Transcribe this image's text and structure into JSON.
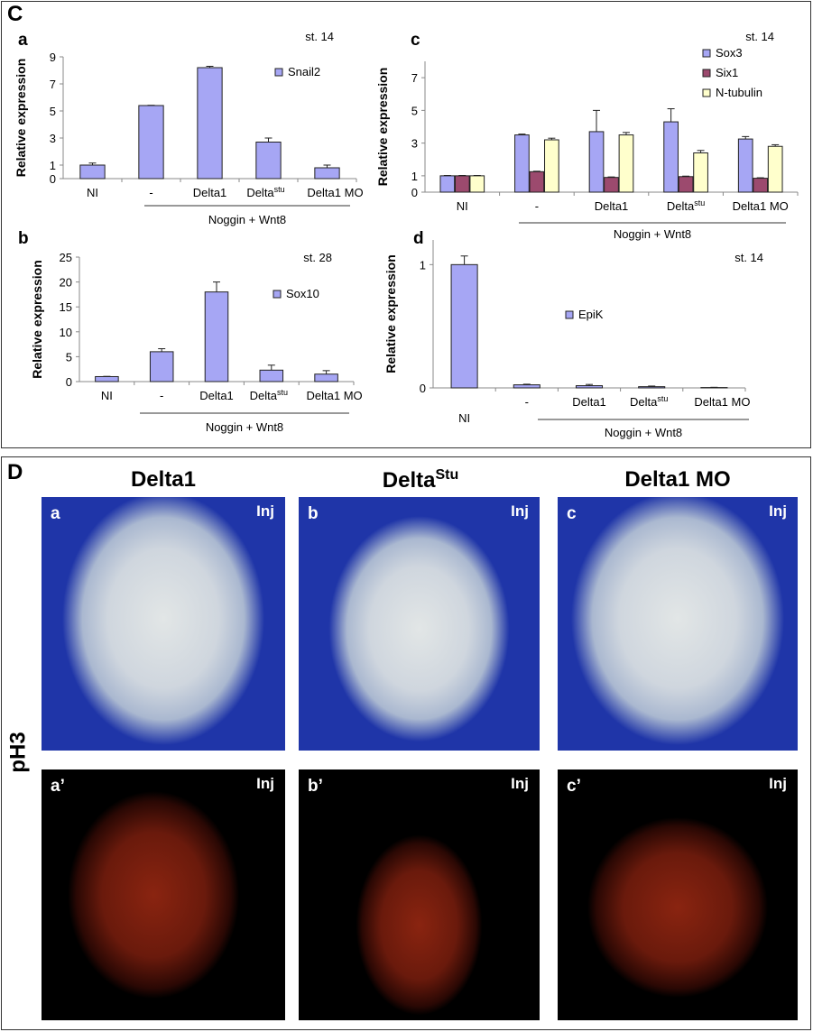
{
  "panels": {
    "C": "C",
    "D": "D"
  },
  "chart_data": [
    {
      "id": "a",
      "type": "bar",
      "panel_letter": "a",
      "stage": "st. 14",
      "ylabel": "Relative expression",
      "yticks": [
        0,
        1,
        3,
        5,
        7,
        9
      ],
      "ylim": [
        0,
        9
      ],
      "categories": [
        "NI",
        "-",
        "Delta1",
        "Delta",
        "Delta1 MO"
      ],
      "category_sup": [
        "",
        "",
        "",
        "stu",
        ""
      ],
      "group_label": "Noggin + Wnt8",
      "series": [
        {
          "name": "Snail2",
          "color": "#a6a6f4",
          "values": [
            1.0,
            5.4,
            8.2,
            2.7,
            0.8
          ],
          "errors": [
            0.15,
            0.02,
            0.1,
            0.3,
            0.2
          ]
        }
      ]
    },
    {
      "id": "b",
      "type": "bar",
      "panel_letter": "b",
      "stage": "st. 28",
      "ylabel": "Relative expression",
      "yticks": [
        0,
        5,
        10,
        15,
        20,
        25
      ],
      "ylim": [
        0,
        25
      ],
      "categories": [
        "NI",
        "-",
        "Delta1",
        "Delta",
        "Delta1 MO"
      ],
      "category_sup": [
        "",
        "",
        "",
        "stu",
        ""
      ],
      "group_label": "Noggin + Wnt8",
      "series": [
        {
          "name": "Sox10",
          "color": "#a6a6f4",
          "values": [
            1.0,
            6.0,
            18.0,
            2.3,
            1.5
          ],
          "errors": [
            0.05,
            0.6,
            2.0,
            1.0,
            0.7
          ]
        }
      ]
    },
    {
      "id": "c",
      "type": "bar",
      "panel_letter": "c",
      "stage": "st. 14",
      "ylabel": "Relative expression",
      "yticks": [
        0,
        1,
        3,
        5,
        7
      ],
      "ylim": [
        0,
        8
      ],
      "categories": [
        "NI",
        "-",
        "Delta1",
        "Delta",
        "Delta1 MO"
      ],
      "category_sup": [
        "",
        "",
        "",
        "stu",
        ""
      ],
      "group_label": "Noggin + Wnt8",
      "series": [
        {
          "name": "Sox3",
          "color": "#a6a6f4",
          "values": [
            1.0,
            3.5,
            3.7,
            4.3,
            3.25
          ],
          "errors": [
            0.02,
            0.05,
            1.3,
            0.8,
            0.15
          ]
        },
        {
          "name": "Six1",
          "color": "#9c4a6e",
          "values": [
            1.0,
            1.25,
            0.9,
            0.95,
            0.85
          ],
          "errors": [
            0.02,
            0.03,
            0.03,
            0.03,
            0.03
          ]
        },
        {
          "name": "N-tubulin",
          "color": "#ffffcc",
          "values": [
            1.0,
            3.2,
            3.5,
            2.4,
            2.8
          ],
          "errors": [
            0.02,
            0.1,
            0.15,
            0.15,
            0.1
          ]
        }
      ]
    },
    {
      "id": "d",
      "type": "bar",
      "panel_letter": "d",
      "stage": "st. 14",
      "ylabel": "Relative expression",
      "yticks": [
        0,
        1
      ],
      "ylim": [
        0,
        1.2
      ],
      "categories": [
        "NI",
        "-",
        "Delta1",
        "Delta",
        "Delta1 MO"
      ],
      "category_sup": [
        "",
        "",
        "",
        "stu",
        ""
      ],
      "group_label": "Noggin + Wnt8",
      "series": [
        {
          "name": "EpiK",
          "color": "#a6a6f4",
          "values": [
            1.0,
            0.025,
            0.018,
            0.01,
            0.003
          ],
          "errors": [
            0.07,
            0.005,
            0.01,
            0.005,
            0.002
          ]
        }
      ]
    }
  ],
  "images": {
    "columns": [
      "Delta1",
      "Delta",
      "Delta1 MO"
    ],
    "column_sup": [
      "",
      "Stu",
      ""
    ],
    "row_label": "pH3",
    "inj": "Inj",
    "top": [
      "a",
      "b",
      "c"
    ],
    "bottom": [
      "a’",
      "b’",
      "c’"
    ]
  }
}
